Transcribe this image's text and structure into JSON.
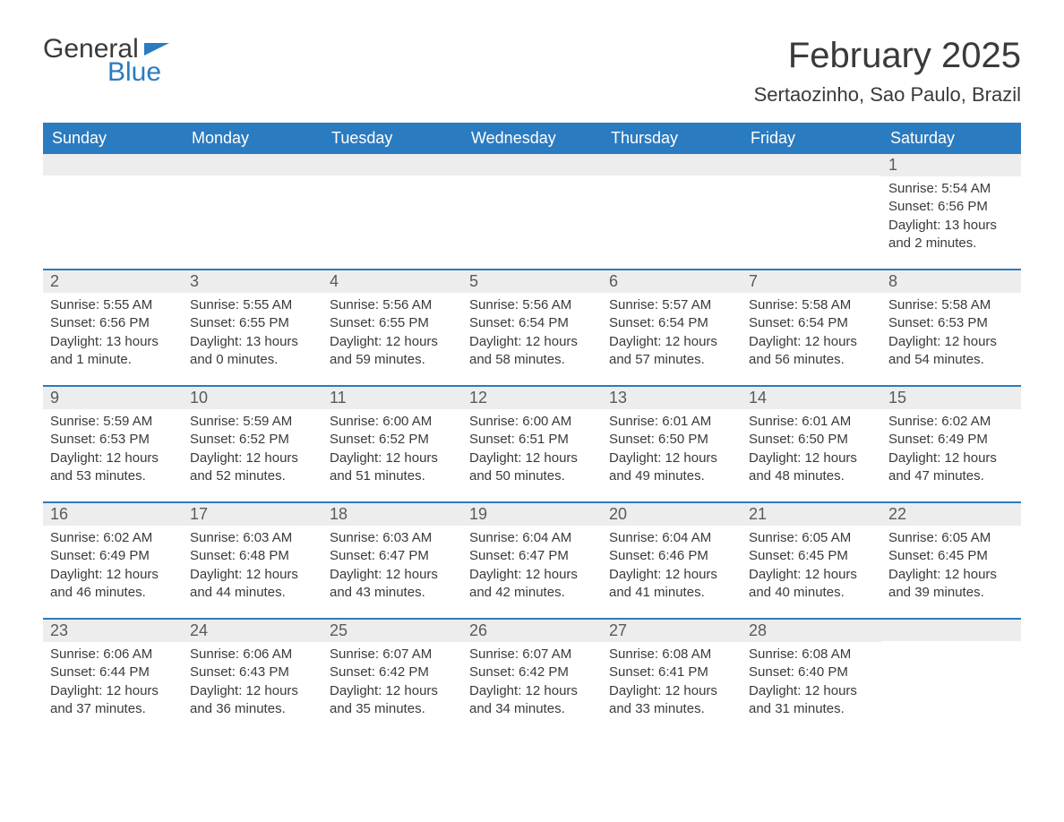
{
  "logo": {
    "word1": "General",
    "word2": "Blue"
  },
  "title": "February 2025",
  "location": "Sertaozinho, Sao Paulo, Brazil",
  "colors": {
    "header_bg": "#2b7bc0",
    "header_text": "#ffffff",
    "daynum_bg": "#ededed",
    "text": "#3a3a3a",
    "divider": "#2b7bc0",
    "page_bg": "#ffffff"
  },
  "day_headers": [
    "Sunday",
    "Monday",
    "Tuesday",
    "Wednesday",
    "Thursday",
    "Friday",
    "Saturday"
  ],
  "weeks": [
    [
      {
        "empty": true
      },
      {
        "empty": true
      },
      {
        "empty": true
      },
      {
        "empty": true
      },
      {
        "empty": true
      },
      {
        "empty": true
      },
      {
        "n": "1",
        "sunrise": "Sunrise: 5:54 AM",
        "sunset": "Sunset: 6:56 PM",
        "day1": "Daylight: 13 hours",
        "day2": "and 2 minutes."
      }
    ],
    [
      {
        "n": "2",
        "sunrise": "Sunrise: 5:55 AM",
        "sunset": "Sunset: 6:56 PM",
        "day1": "Daylight: 13 hours",
        "day2": "and 1 minute."
      },
      {
        "n": "3",
        "sunrise": "Sunrise: 5:55 AM",
        "sunset": "Sunset: 6:55 PM",
        "day1": "Daylight: 13 hours",
        "day2": "and 0 minutes."
      },
      {
        "n": "4",
        "sunrise": "Sunrise: 5:56 AM",
        "sunset": "Sunset: 6:55 PM",
        "day1": "Daylight: 12 hours",
        "day2": "and 59 minutes."
      },
      {
        "n": "5",
        "sunrise": "Sunrise: 5:56 AM",
        "sunset": "Sunset: 6:54 PM",
        "day1": "Daylight: 12 hours",
        "day2": "and 58 minutes."
      },
      {
        "n": "6",
        "sunrise": "Sunrise: 5:57 AM",
        "sunset": "Sunset: 6:54 PM",
        "day1": "Daylight: 12 hours",
        "day2": "and 57 minutes."
      },
      {
        "n": "7",
        "sunrise": "Sunrise: 5:58 AM",
        "sunset": "Sunset: 6:54 PM",
        "day1": "Daylight: 12 hours",
        "day2": "and 56 minutes."
      },
      {
        "n": "8",
        "sunrise": "Sunrise: 5:58 AM",
        "sunset": "Sunset: 6:53 PM",
        "day1": "Daylight: 12 hours",
        "day2": "and 54 minutes."
      }
    ],
    [
      {
        "n": "9",
        "sunrise": "Sunrise: 5:59 AM",
        "sunset": "Sunset: 6:53 PM",
        "day1": "Daylight: 12 hours",
        "day2": "and 53 minutes."
      },
      {
        "n": "10",
        "sunrise": "Sunrise: 5:59 AM",
        "sunset": "Sunset: 6:52 PM",
        "day1": "Daylight: 12 hours",
        "day2": "and 52 minutes."
      },
      {
        "n": "11",
        "sunrise": "Sunrise: 6:00 AM",
        "sunset": "Sunset: 6:52 PM",
        "day1": "Daylight: 12 hours",
        "day2": "and 51 minutes."
      },
      {
        "n": "12",
        "sunrise": "Sunrise: 6:00 AM",
        "sunset": "Sunset: 6:51 PM",
        "day1": "Daylight: 12 hours",
        "day2": "and 50 minutes."
      },
      {
        "n": "13",
        "sunrise": "Sunrise: 6:01 AM",
        "sunset": "Sunset: 6:50 PM",
        "day1": "Daylight: 12 hours",
        "day2": "and 49 minutes."
      },
      {
        "n": "14",
        "sunrise": "Sunrise: 6:01 AM",
        "sunset": "Sunset: 6:50 PM",
        "day1": "Daylight: 12 hours",
        "day2": "and 48 minutes."
      },
      {
        "n": "15",
        "sunrise": "Sunrise: 6:02 AM",
        "sunset": "Sunset: 6:49 PM",
        "day1": "Daylight: 12 hours",
        "day2": "and 47 minutes."
      }
    ],
    [
      {
        "n": "16",
        "sunrise": "Sunrise: 6:02 AM",
        "sunset": "Sunset: 6:49 PM",
        "day1": "Daylight: 12 hours",
        "day2": "and 46 minutes."
      },
      {
        "n": "17",
        "sunrise": "Sunrise: 6:03 AM",
        "sunset": "Sunset: 6:48 PM",
        "day1": "Daylight: 12 hours",
        "day2": "and 44 minutes."
      },
      {
        "n": "18",
        "sunrise": "Sunrise: 6:03 AM",
        "sunset": "Sunset: 6:47 PM",
        "day1": "Daylight: 12 hours",
        "day2": "and 43 minutes."
      },
      {
        "n": "19",
        "sunrise": "Sunrise: 6:04 AM",
        "sunset": "Sunset: 6:47 PM",
        "day1": "Daylight: 12 hours",
        "day2": "and 42 minutes."
      },
      {
        "n": "20",
        "sunrise": "Sunrise: 6:04 AM",
        "sunset": "Sunset: 6:46 PM",
        "day1": "Daylight: 12 hours",
        "day2": "and 41 minutes."
      },
      {
        "n": "21",
        "sunrise": "Sunrise: 6:05 AM",
        "sunset": "Sunset: 6:45 PM",
        "day1": "Daylight: 12 hours",
        "day2": "and 40 minutes."
      },
      {
        "n": "22",
        "sunrise": "Sunrise: 6:05 AM",
        "sunset": "Sunset: 6:45 PM",
        "day1": "Daylight: 12 hours",
        "day2": "and 39 minutes."
      }
    ],
    [
      {
        "n": "23",
        "sunrise": "Sunrise: 6:06 AM",
        "sunset": "Sunset: 6:44 PM",
        "day1": "Daylight: 12 hours",
        "day2": "and 37 minutes."
      },
      {
        "n": "24",
        "sunrise": "Sunrise: 6:06 AM",
        "sunset": "Sunset: 6:43 PM",
        "day1": "Daylight: 12 hours",
        "day2": "and 36 minutes."
      },
      {
        "n": "25",
        "sunrise": "Sunrise: 6:07 AM",
        "sunset": "Sunset: 6:42 PM",
        "day1": "Daylight: 12 hours",
        "day2": "and 35 minutes."
      },
      {
        "n": "26",
        "sunrise": "Sunrise: 6:07 AM",
        "sunset": "Sunset: 6:42 PM",
        "day1": "Daylight: 12 hours",
        "day2": "and 34 minutes."
      },
      {
        "n": "27",
        "sunrise": "Sunrise: 6:08 AM",
        "sunset": "Sunset: 6:41 PM",
        "day1": "Daylight: 12 hours",
        "day2": "and 33 minutes."
      },
      {
        "n": "28",
        "sunrise": "Sunrise: 6:08 AM",
        "sunset": "Sunset: 6:40 PM",
        "day1": "Daylight: 12 hours",
        "day2": "and 31 minutes."
      },
      {
        "empty": true
      }
    ]
  ]
}
